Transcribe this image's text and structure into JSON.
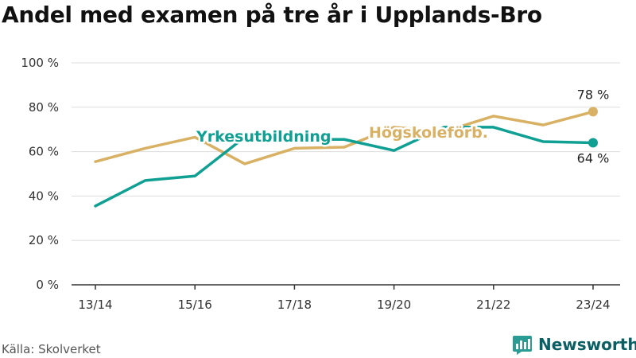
{
  "title": "Andel med examen på tre år i Upplands-Bro",
  "source": "Källa: Skolverket",
  "brand": {
    "name": "Newsworthy",
    "icon": "newsworthy-logo-icon"
  },
  "colors": {
    "vocational": "#0fa093",
    "academic": "#d8b164",
    "grid": "#dddddd",
    "axis": "#333333",
    "brand": "#0a5f64"
  },
  "chart_data": {
    "type": "line",
    "x": [
      "13/14",
      "14/15",
      "15/16",
      "16/17",
      "17/18",
      "18/19",
      "19/20",
      "20/21",
      "21/22",
      "22/23",
      "23/24"
    ],
    "xticks": [
      "13/14",
      "15/16",
      "17/18",
      "19/20",
      "21/22",
      "23/24"
    ],
    "ylim": [
      0,
      100
    ],
    "yticks": [
      0,
      20,
      40,
      60,
      80,
      100
    ],
    "ytick_labels": [
      "0 %",
      "20 %",
      "40 %",
      "60 %",
      "80 %",
      "100 %"
    ],
    "grid": true,
    "xlabel": "",
    "ylabel": "",
    "series": [
      {
        "name": "Yrkesutbildning",
        "color": "#0fa093",
        "values": [
          35.5,
          47,
          49,
          66.5,
          65.5,
          65.5,
          60.5,
          71,
          71,
          64.5,
          64
        ],
        "end_label": "64 %"
      },
      {
        "name": "Högskoleförb.",
        "color": "#d8b164",
        "values": [
          55.5,
          61.5,
          66.5,
          54.5,
          61.5,
          62,
          71,
          69,
          76,
          72,
          78
        ],
        "end_label": "78 %"
      }
    ]
  }
}
